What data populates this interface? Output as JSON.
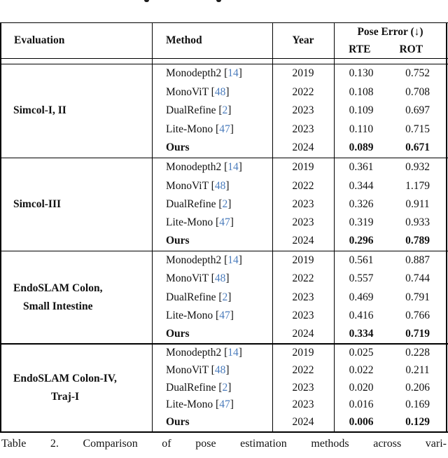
{
  "colors": {
    "citation": "#4b7cbc",
    "text": "#111111",
    "rule": "#000000"
  },
  "table": {
    "header": {
      "evaluation": "Evaluation",
      "method": "Method",
      "year": "Year",
      "pose_error": "Pose Error (↓)",
      "rte": "RTE",
      "rot": "ROT"
    },
    "blocks": [
      {
        "evaluation": [
          "Simcol-I, II"
        ],
        "rows": [
          {
            "method": "Monodepth2",
            "cite": "14",
            "year": "2019",
            "rte": "0.130",
            "rot": "0.752",
            "bold": false
          },
          {
            "method": "MonoViT",
            "cite": "48",
            "year": "2022",
            "rte": "0.108",
            "rot": "0.708",
            "bold": false
          },
          {
            "method": "DualRefine",
            "cite": "2",
            "year": "2023",
            "rte": "0.109",
            "rot": "0.697",
            "bold": false
          },
          {
            "method": "Lite-Mono",
            "cite": "47",
            "year": "2023",
            "rte": "0.110",
            "rot": "0.715",
            "bold": false
          },
          {
            "method": "Ours",
            "cite": null,
            "year": "2024",
            "rte": "0.089",
            "rot": "0.671",
            "bold": true
          }
        ]
      },
      {
        "evaluation": [
          "Simcol-III"
        ],
        "rows": [
          {
            "method": "Monodepth2",
            "cite": "14",
            "year": "2019",
            "rte": "0.361",
            "rot": "0.932",
            "bold": false
          },
          {
            "method": "MonoViT",
            "cite": "48",
            "year": "2022",
            "rte": "0.344",
            "rot": "1.179",
            "bold": false
          },
          {
            "method": "DualRefine",
            "cite": "2",
            "year": "2023",
            "rte": "0.326",
            "rot": "0.911",
            "bold": false
          },
          {
            "method": "Lite-Mono",
            "cite": "47",
            "year": "2023",
            "rte": "0.319",
            "rot": "0.933",
            "bold": false
          },
          {
            "method": "Ours",
            "cite": null,
            "year": "2024",
            "rte": "0.296",
            "rot": "0.789",
            "bold": true
          }
        ]
      },
      {
        "evaluation": [
          "EndoSLAM Colon,",
          "Small Intestine"
        ],
        "rows": [
          {
            "method": "Monodepth2",
            "cite": "14",
            "year": "2019",
            "rte": "0.561",
            "rot": "0.887",
            "bold": false
          },
          {
            "method": "MonoViT",
            "cite": "48",
            "year": "2022",
            "rte": "0.557",
            "rot": "0.744",
            "bold": false
          },
          {
            "method": "DualRefine",
            "cite": "2",
            "year": "2023",
            "rte": "0.469",
            "rot": "0.791",
            "bold": false
          },
          {
            "method": "Lite-Mono",
            "cite": "47",
            "year": "2023",
            "rte": "0.416",
            "rot": "0.766",
            "bold": false
          },
          {
            "method": "Ours",
            "cite": null,
            "year": "2024",
            "rte": "0.334",
            "rot": "0.719",
            "bold": true
          }
        ]
      },
      {
        "evaluation": [
          "EndoSLAM Colon-IV,",
          "Traj-I"
        ],
        "rows": [
          {
            "method": "Monodepth2",
            "cite": "14",
            "year": "2019",
            "rte": "0.025",
            "rot": "0.228",
            "bold": false
          },
          {
            "method": "MonoViT",
            "cite": "48",
            "year": "2022",
            "rte": "0.022",
            "rot": "0.211",
            "bold": false
          },
          {
            "method": "DualRefine",
            "cite": "2",
            "year": "2023",
            "rte": "0.020",
            "rot": "0.206",
            "bold": false
          },
          {
            "method": "Lite-Mono",
            "cite": "47",
            "year": "2023",
            "rte": "0.016",
            "rot": "0.169",
            "bold": false
          },
          {
            "method": "Ours",
            "cite": null,
            "year": "2024",
            "rte": "0.006",
            "rot": "0.129",
            "bold": true
          }
        ]
      }
    ]
  },
  "caption": "Table 2. Comparison of pose estimation methods across vari-"
}
